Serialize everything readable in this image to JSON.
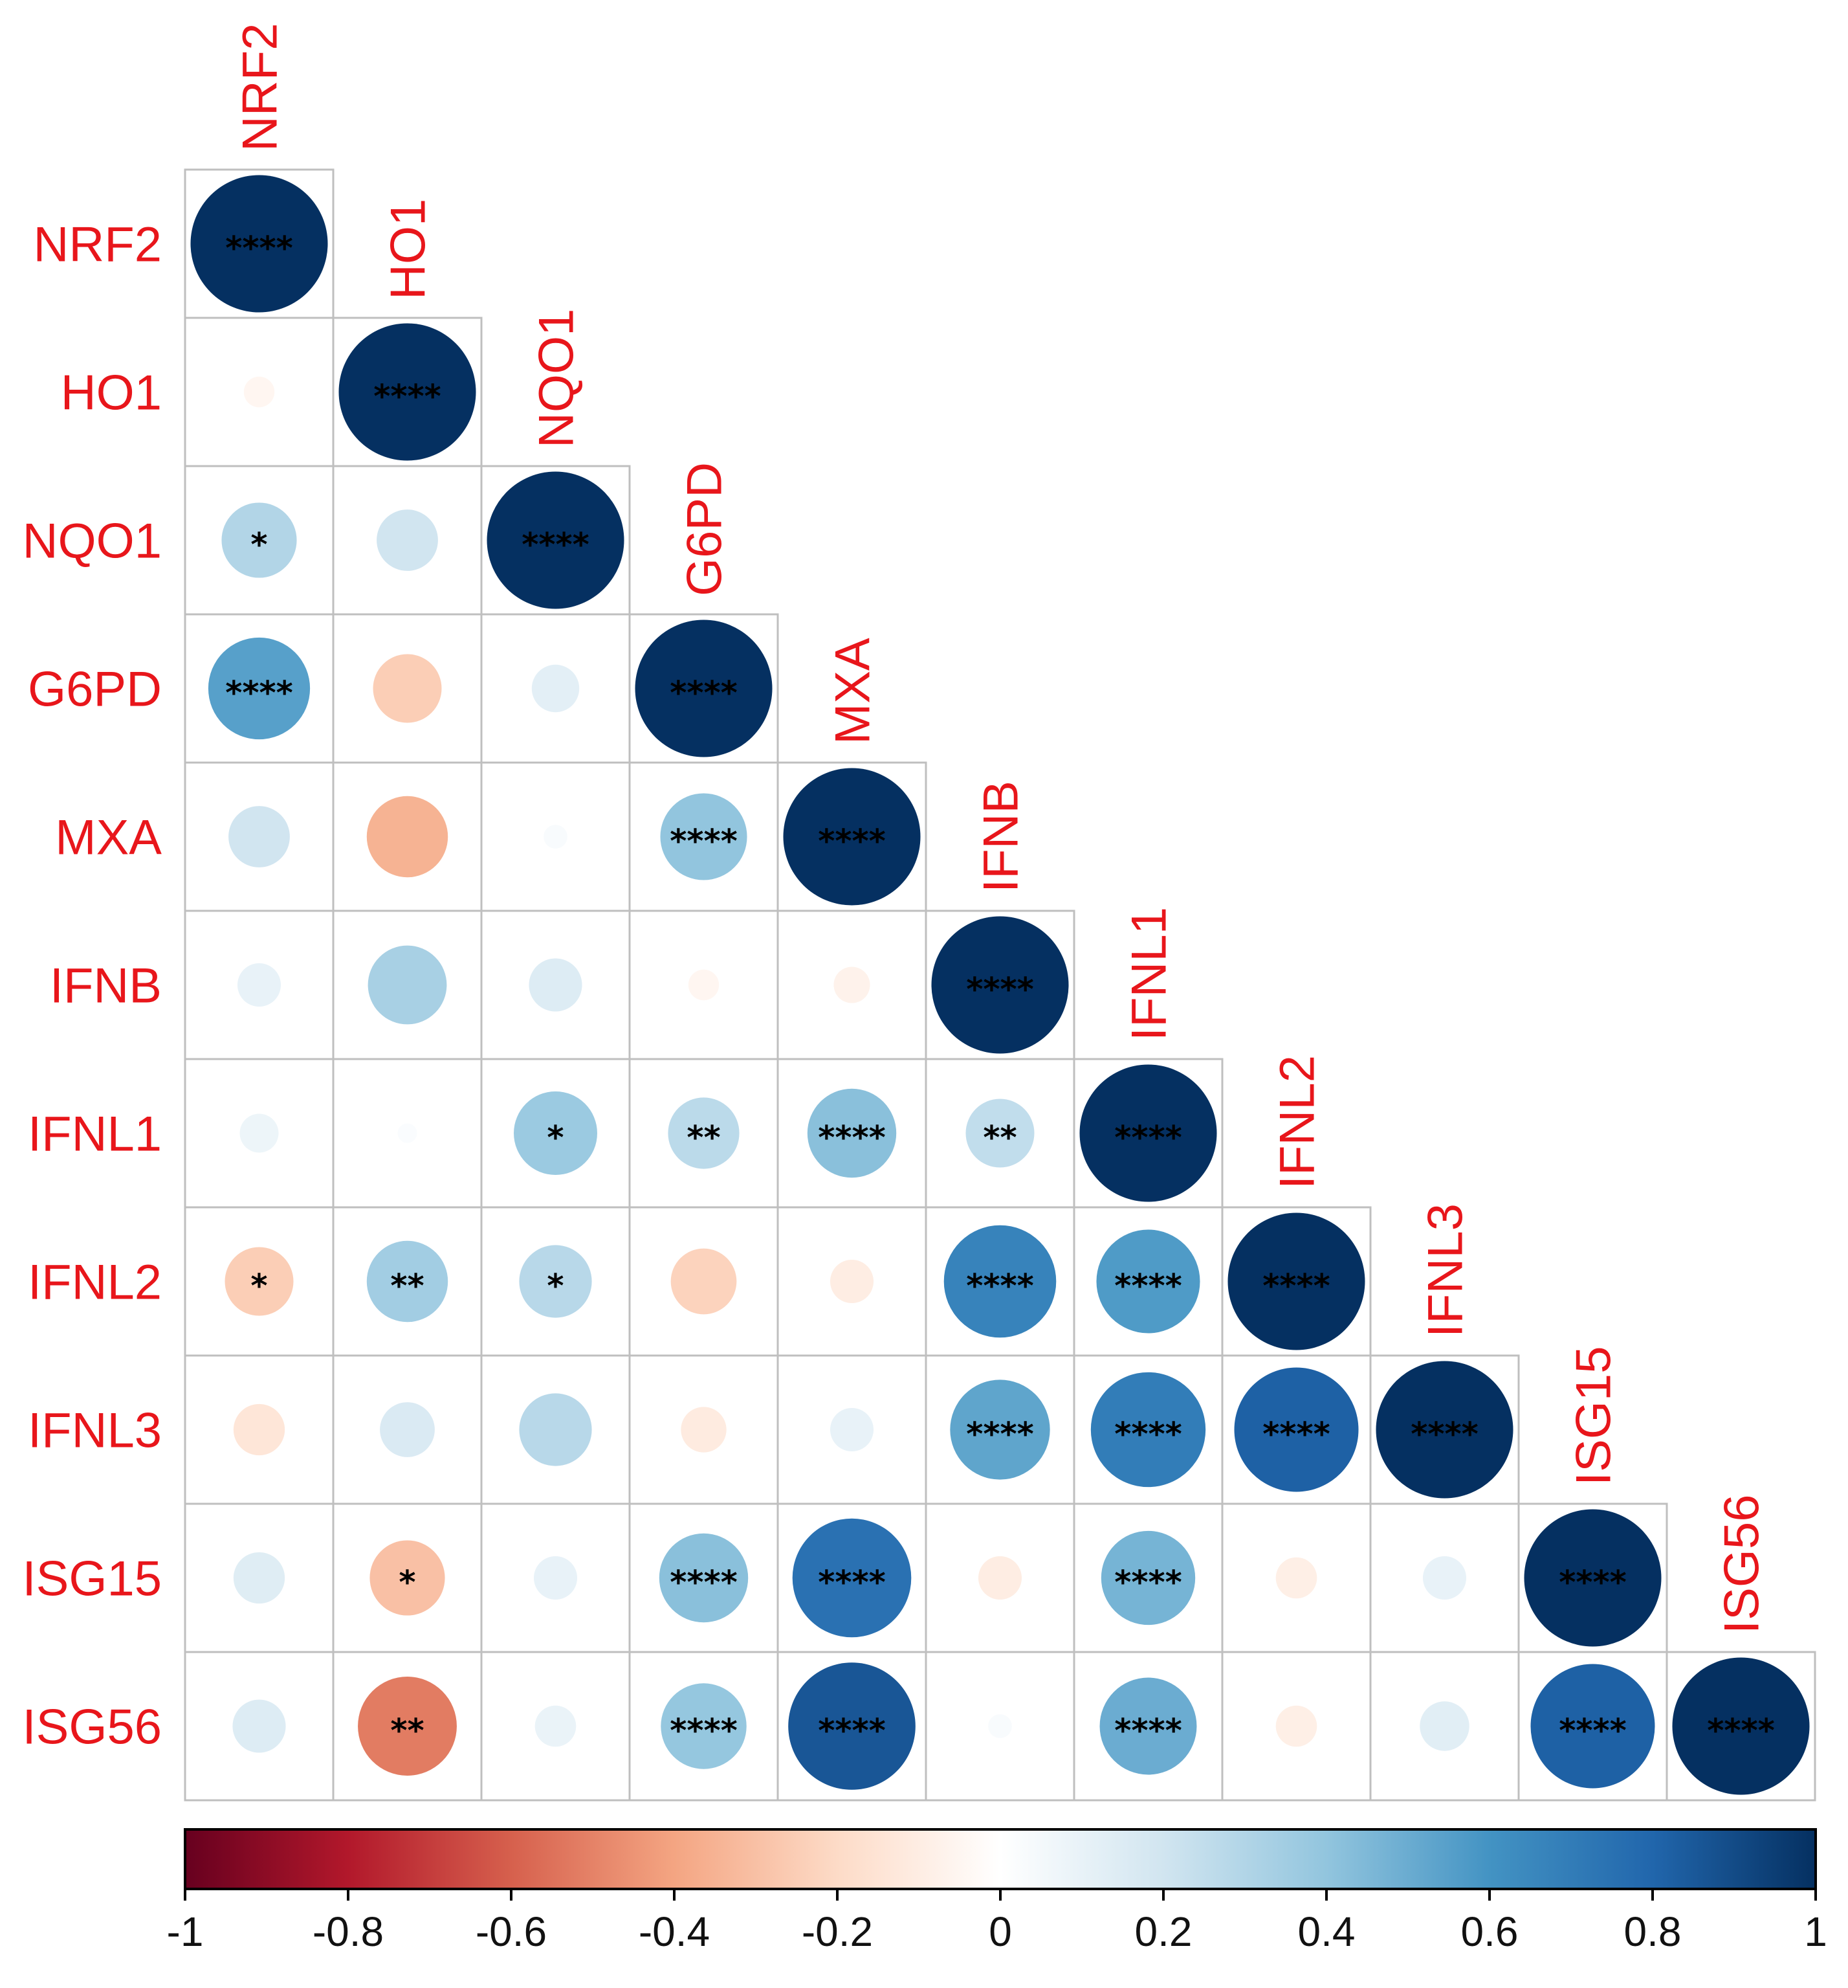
{
  "chart_data": {
    "type": "heatmap",
    "subtype": "correlation-matrix-lower-triangle",
    "title": "",
    "variables": [
      "NRF2",
      "HO1",
      "NQO1",
      "G6PD",
      "MXA",
      "IFNB",
      "IFNL1",
      "IFNL2",
      "IFNL3",
      "ISG15",
      "ISG56"
    ],
    "matrix": [
      [
        1.0
      ],
      [
        -0.05,
        1.0
      ],
      [
        0.3,
        0.2,
        1.0
      ],
      [
        0.55,
        -0.25,
        0.12,
        1.0
      ],
      [
        0.2,
        -0.35,
        0.03,
        0.4,
        1.0
      ],
      [
        0.1,
        0.33,
        0.15,
        -0.05,
        -0.07,
        1.0
      ],
      [
        0.08,
        0.02,
        0.37,
        0.27,
        0.42,
        0.25,
        1.0
      ],
      [
        -0.25,
        0.35,
        0.28,
        -0.23,
        -0.1,
        0.67,
        0.57,
        1.0
      ],
      [
        -0.14,
        0.16,
        0.28,
        -0.11,
        0.1,
        0.53,
        0.7,
        0.82,
        1.0
      ],
      [
        0.14,
        -0.3,
        0.1,
        0.42,
        0.75,
        -0.1,
        0.47,
        -0.09,
        0.1,
        1.0
      ],
      [
        0.15,
        -0.52,
        0.09,
        0.39,
        0.86,
        0.03,
        0.5,
        -0.09,
        0.13,
        0.82,
        1.0
      ]
    ],
    "significance": [
      [
        "****"
      ],
      [
        "",
        "****"
      ],
      [
        "*",
        "",
        "****"
      ],
      [
        "****",
        "",
        "",
        "****"
      ],
      [
        "",
        "",
        "",
        "****",
        "****"
      ],
      [
        "",
        "",
        "",
        "",
        "",
        "****"
      ],
      [
        "",
        "",
        "*",
        "**",
        "****",
        "**",
        "****"
      ],
      [
        "*",
        "**",
        "*",
        "",
        "",
        "****",
        "****",
        "****"
      ],
      [
        "",
        "",
        "",
        "",
        "",
        "****",
        "****",
        "****",
        "****"
      ],
      [
        "",
        "*",
        "",
        "****",
        "****",
        "",
        "****",
        "",
        "",
        "****"
      ],
      [
        "",
        "**",
        "",
        "****",
        "****",
        "",
        "****",
        "",
        "",
        "****",
        "****"
      ]
    ],
    "colorbar": {
      "range": [
        -1,
        1
      ],
      "ticks": [
        "-1",
        "-0.8",
        "-0.6",
        "-0.4",
        "-0.2",
        "0",
        "0.2",
        "0.4",
        "0.6",
        "0.8",
        "1"
      ],
      "colors": [
        "#67001f",
        "#b2182b",
        "#d6604d",
        "#f4a582",
        "#fddbc7",
        "#ffffff",
        "#d1e5f0",
        "#92c5de",
        "#4393c3",
        "#2166ac",
        "#053061"
      ],
      "orientation": "horizontal",
      "placement": "bottom"
    },
    "label_color": "#e8161b",
    "grid": true
  }
}
